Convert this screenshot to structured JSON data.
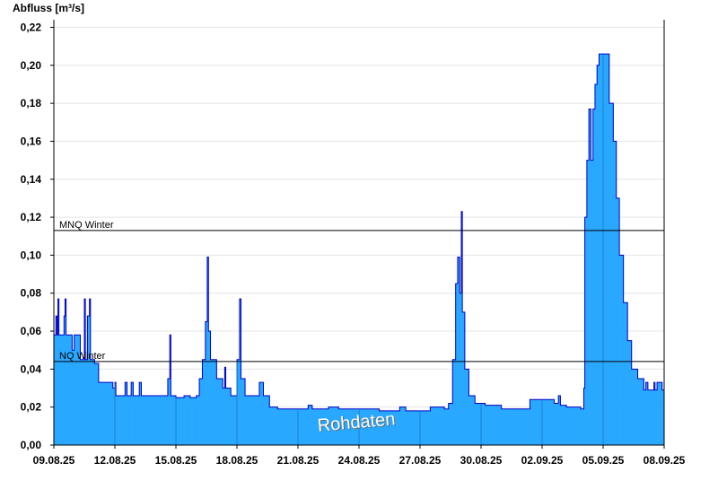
{
  "chart_data": {
    "type": "step-area",
    "y_label": "Abfluss [m³/s]",
    "watermark": "Rohdaten",
    "color": "#29a8ff",
    "line_color": "#0000c8",
    "grid": true,
    "xlim": [
      0,
      30
    ],
    "xticks": [
      {
        "value": 0,
        "label": "09.08.25"
      },
      {
        "value": 3,
        "label": "12.08.25"
      },
      {
        "value": 6,
        "label": "15.08.25"
      },
      {
        "value": 9,
        "label": "18.08.25"
      },
      {
        "value": 12,
        "label": "21.08.25"
      },
      {
        "value": 15,
        "label": "24.08.25"
      },
      {
        "value": 18,
        "label": "27.08.25"
      },
      {
        "value": 21,
        "label": "30.08.25"
      },
      {
        "value": 24,
        "label": "02.09.25"
      },
      {
        "value": 27,
        "label": "05.09.25"
      },
      {
        "value": 30,
        "label": "08.09.25"
      }
    ],
    "ylim": [
      0,
      0.224
    ],
    "yticks": [
      {
        "value": 0,
        "label": "0,00"
      },
      {
        "value": 0.02,
        "label": "0,02"
      },
      {
        "value": 0.04,
        "label": "0,04"
      },
      {
        "value": 0.06,
        "label": "0,06"
      },
      {
        "value": 0.08,
        "label": "0,08"
      },
      {
        "value": 0.1,
        "label": "0,10"
      },
      {
        "value": 0.12,
        "label": "0,12"
      },
      {
        "value": 0.14,
        "label": "0,14"
      },
      {
        "value": 0.16,
        "label": "0,16"
      },
      {
        "value": 0.18,
        "label": "0,18"
      },
      {
        "value": 0.2,
        "label": "0,20"
      },
      {
        "value": 0.22,
        "label": "0,22"
      }
    ],
    "reference_lines": [
      {
        "label": "MNQ Winter",
        "value": 0.113
      },
      {
        "label": "NQ Winter",
        "value": 0.044
      }
    ],
    "x": [
      0,
      0.1,
      0.15,
      0.2,
      0.25,
      0.5,
      0.55,
      0.6,
      0.9,
      1.0,
      1.3,
      1.5,
      1.55,
      1.65,
      1.75,
      1.8,
      2.0,
      2.2,
      2.9,
      3.0,
      3.05,
      3.5,
      3.6,
      3.8,
      3.9,
      4.2,
      4.3,
      5.6,
      5.7,
      5.75,
      6.0,
      6.4,
      6.7,
      7.0,
      7.15,
      7.3,
      7.45,
      7.54,
      7.6,
      7.7,
      8.0,
      8.3,
      8.4,
      8.45,
      8.7,
      9.0,
      9.13,
      9.2,
      9.4,
      10.1,
      10.3,
      10.6,
      11.0,
      12.5,
      12.7,
      13.5,
      14.0,
      16.0,
      17.0,
      17.3,
      18.5,
      19.2,
      19.4,
      19.6,
      19.75,
      19.85,
      19.95,
      20.03,
      20.08,
      20.2,
      20.4,
      20.7,
      21.2,
      22.0,
      23.4,
      24.6,
      24.8,
      24.9,
      25.2,
      25.9,
      26.05,
      26.1,
      26.2,
      26.3,
      26.4,
      26.5,
      26.6,
      26.7,
      26.8,
      27.3,
      27.5,
      27.65,
      27.8,
      28.0,
      28.2,
      28.4,
      28.7,
      29.0,
      29.1,
      29.2,
      29.5,
      29.55,
      29.65,
      29.8,
      29.9
    ],
    "values": [
      0.058,
      0.068,
      0.058,
      0.077,
      0.058,
      0.068,
      0.077,
      0.058,
      0.05,
      0.058,
      0.045,
      0.077,
      0.045,
      0.068,
      0.077,
      0.045,
      0.043,
      0.033,
      0.03,
      0.033,
      0.026,
      0.033,
      0.026,
      0.033,
      0.026,
      0.033,
      0.026,
      0.035,
      0.058,
      0.026,
      0.025,
      0.026,
      0.025,
      0.026,
      0.035,
      0.045,
      0.065,
      0.099,
      0.06,
      0.045,
      0.035,
      0.03,
      0.041,
      0.03,
      0.026,
      0.045,
      0.077,
      0.035,
      0.026,
      0.033,
      0.026,
      0.02,
      0.019,
      0.021,
      0.019,
      0.02,
      0.019,
      0.018,
      0.02,
      0.018,
      0.02,
      0.019,
      0.022,
      0.045,
      0.085,
      0.099,
      0.08,
      0.123,
      0.07,
      0.04,
      0.026,
      0.022,
      0.021,
      0.019,
      0.024,
      0.022,
      0.026,
      0.021,
      0.02,
      0.019,
      0.03,
      0.12,
      0.15,
      0.177,
      0.15,
      0.177,
      0.19,
      0.2,
      0.206,
      0.18,
      0.16,
      0.13,
      0.1,
      0.075,
      0.055,
      0.04,
      0.035,
      0.029,
      0.033,
      0.029,
      0.033,
      0.029,
      0.033,
      0.033,
      0.029
    ]
  }
}
